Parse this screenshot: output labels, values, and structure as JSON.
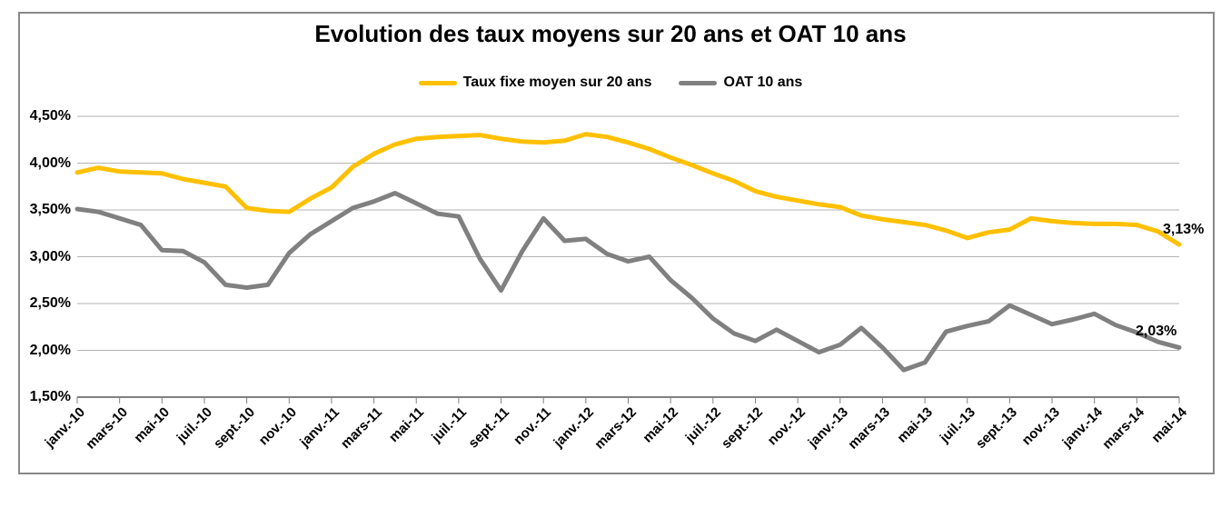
{
  "title": "Evolution des taux moyens sur 20 ans et OAT 10 ans",
  "legend": {
    "items": [
      {
        "label": "Taux fixe moyen sur 20 ans",
        "color": "#FFC000"
      },
      {
        "label": "OAT 10 ans",
        "color": "#808080"
      }
    ]
  },
  "end_labels": [
    {
      "series": "Taux fixe moyen sur 20 ans",
      "text": "3,13%"
    },
    {
      "series": "OAT 10 ans",
      "text": "2,03%"
    }
  ],
  "colors": {
    "taux_fixe_line": "#FFC000",
    "oat_line": "#808080",
    "gridline": "#B3B3B3",
    "axis": "#808080",
    "frame_border": "#888888"
  },
  "chart_data": {
    "type": "line",
    "title": "Evolution des taux moyens sur 20 ans et OAT 10 ans",
    "x": [
      "janv.-10",
      "févr.-10",
      "mars-10",
      "avr.-10",
      "mai-10",
      "juin-10",
      "juil.-10",
      "août-10",
      "sept.-10",
      "oct.-10",
      "nov.-10",
      "déc.-10",
      "janv.-11",
      "févr.-11",
      "mars-11",
      "avr.-11",
      "mai-11",
      "juin-11",
      "juil.-11",
      "août-11",
      "sept.-11",
      "oct.-11",
      "nov.-11",
      "déc.-11",
      "janv.-12",
      "févr.-12",
      "mars-12",
      "avr.-12",
      "mai-12",
      "juin-12",
      "juil.-12",
      "août-12",
      "sept.-12",
      "oct.-12",
      "nov.-12",
      "déc.-12",
      "janv.-13",
      "févr.-13",
      "mars-13",
      "avr.-13",
      "mai-13",
      "juin-13",
      "juil.-13",
      "août-13",
      "sept.-13",
      "oct.-13",
      "nov.-13",
      "déc.-13",
      "janv.-14",
      "févr.-14",
      "mars-14",
      "avr.-14",
      "mai-14"
    ],
    "x_tick_every": 2,
    "x_tick_labels": [
      "janv.-10",
      "mars-10",
      "mai-10",
      "juil.-10",
      "sept.-10",
      "nov.-10",
      "janv.-11",
      "mars-11",
      "mai-11",
      "juil.-11",
      "sept.-11",
      "nov.-11",
      "janv.-12",
      "mars-12",
      "mai-12",
      "juil.-12",
      "sept.-12",
      "nov.-12",
      "janv.-13",
      "mars-13",
      "mai-13",
      "juil.-13",
      "sept.-13",
      "nov.-13",
      "janv.-14",
      "mars-14",
      "mai-14"
    ],
    "y_tick_labels": [
      "4,50%",
      "4,00%",
      "3,50%",
      "3,00%",
      "2,50%",
      "2,00%",
      "1,50%"
    ],
    "ylim": [
      1.5,
      4.5
    ],
    "y_step": 0.5,
    "grid": true,
    "legend_position": "top",
    "series": [
      {
        "name": "Taux fixe moyen sur 20 ans",
        "color": "#FFC000",
        "end_label": "3,13%",
        "values": [
          3.9,
          3.95,
          3.91,
          3.9,
          3.89,
          3.83,
          3.79,
          3.75,
          3.52,
          3.49,
          3.48,
          3.62,
          3.74,
          3.96,
          4.1,
          4.2,
          4.26,
          4.28,
          4.29,
          4.3,
          4.26,
          4.23,
          4.22,
          4.24,
          4.31,
          4.28,
          4.22,
          4.15,
          4.06,
          3.98,
          3.89,
          3.81,
          3.7,
          3.64,
          3.6,
          3.56,
          3.53,
          3.44,
          3.4,
          3.37,
          3.34,
          3.28,
          3.2,
          3.26,
          3.29,
          3.41,
          3.38,
          3.36,
          3.35,
          3.35,
          3.34,
          3.27,
          3.13
        ]
      },
      {
        "name": "OAT 10 ans",
        "color": "#808080",
        "end_label": "2,03%",
        "values": [
          3.51,
          3.48,
          3.41,
          3.34,
          3.07,
          3.06,
          2.94,
          2.7,
          2.67,
          2.7,
          3.04,
          3.24,
          3.38,
          3.52,
          3.59,
          3.68,
          3.57,
          3.46,
          3.43,
          2.98,
          2.64,
          3.06,
          3.41,
          3.17,
          3.19,
          3.03,
          2.95,
          3.0,
          2.75,
          2.56,
          2.34,
          2.18,
          2.1,
          2.22,
          2.1,
          1.98,
          2.06,
          2.24,
          2.03,
          1.79,
          1.87,
          2.2,
          2.26,
          2.31,
          2.48,
          2.38,
          2.28,
          2.33,
          2.39,
          2.27,
          2.19,
          2.09,
          2.03
        ]
      }
    ]
  }
}
